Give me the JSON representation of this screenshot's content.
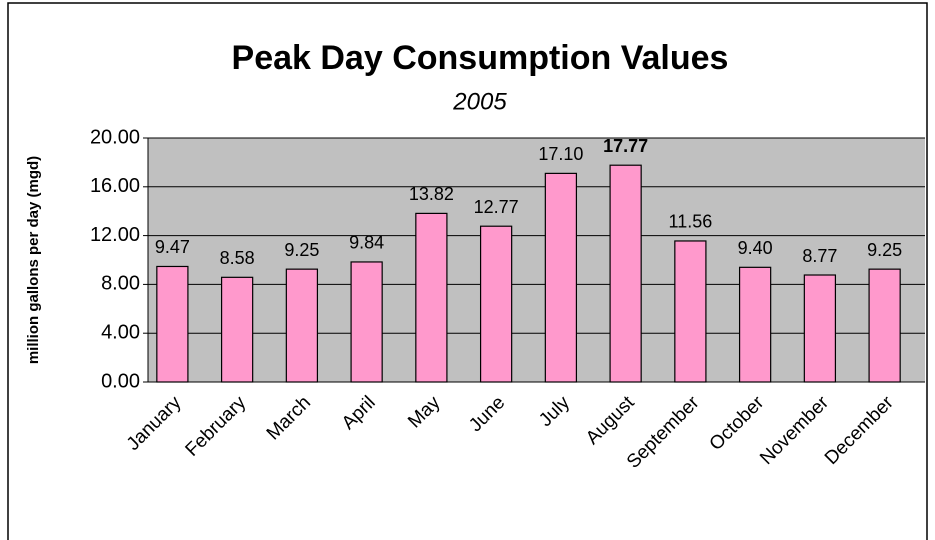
{
  "chart_data": {
    "type": "bar",
    "title": "Peak Day Consumption Values",
    "subtitle": "2005",
    "y_label": "million gallons per day (mgd)",
    "categories": [
      "January",
      "February",
      "March",
      "April",
      "May",
      "June",
      "July",
      "August",
      "September",
      "October",
      "November",
      "December"
    ],
    "values": [
      9.47,
      8.58,
      9.25,
      9.84,
      13.82,
      12.77,
      17.1,
      17.77,
      11.56,
      9.4,
      8.77,
      9.25
    ],
    "value_labels": [
      "9.47",
      "8.58",
      "9.25",
      "9.84",
      "13.82",
      "12.77",
      "17.10",
      "17.77",
      "11.56",
      "9.40",
      "8.77",
      "9.25"
    ],
    "color": "#ff99cc",
    "ylim": [
      0,
      20
    ],
    "yticks": [
      {
        "value": 0,
        "label": "0.00"
      },
      {
        "value": 4,
        "label": "4.00"
      },
      {
        "value": 8,
        "label": "8.00"
      },
      {
        "value": 12,
        "label": "12.00"
      },
      {
        "value": 16,
        "label": "16.00"
      },
      {
        "value": 20,
        "label": "20.00"
      }
    ],
    "grid": true
  }
}
